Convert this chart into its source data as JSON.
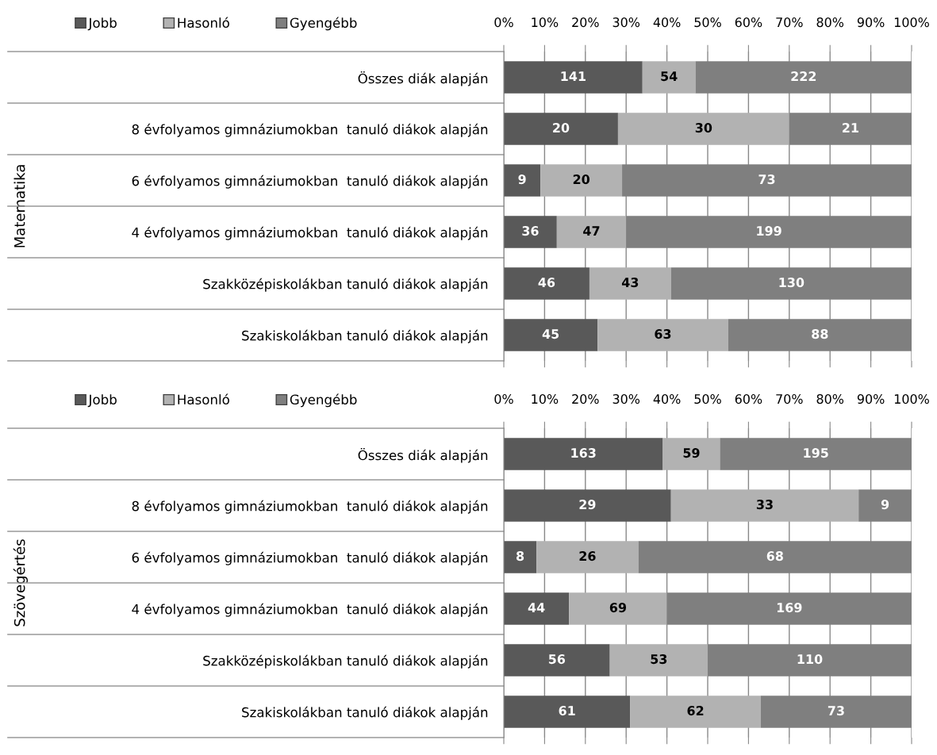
{
  "chart_data": [
    {
      "type": "bar",
      "orientation": "horizontal",
      "stacked": true,
      "ylabel": "Matematika",
      "categories": [
        "Összes diák alapján",
        "8 évfolyamos gimnáziumokban  tanuló diákok alapján",
        "6 évfolyamos gimnáziumokban  tanuló diákok alapján",
        "4 évfolyamos gimnáziumokban  tanuló diákok alapján",
        "Szakközépiskolákban tanuló diákok alapján",
        "Szakiskolákban tanuló diákok alapján"
      ],
      "series": [
        {
          "name": "Jobb",
          "color": "#595959",
          "values": [
            34,
            28,
            9,
            13,
            21,
            23
          ]
        },
        {
          "name": "Hasonló",
          "color": "#b2b2b2",
          "values": [
            13,
            42,
            20,
            17,
            20,
            32
          ]
        },
        {
          "name": "Gyengébb",
          "color": "#7f7f7f",
          "values": [
            53,
            30,
            71,
            70,
            59,
            45
          ]
        }
      ],
      "annotations": [
        "141",
        "54",
        "222",
        "20",
        "30",
        "21",
        "9",
        "20",
        "73",
        "36",
        "47",
        "199",
        "46",
        "43",
        "130",
        "45",
        "63",
        "88"
      ],
      "xlim": [
        0,
        100
      ],
      "xticks": [
        {
          "value": 0,
          "label": "0%"
        },
        {
          "value": 10,
          "label": "10%"
        },
        {
          "value": 20,
          "label": "20%"
        },
        {
          "value": 30,
          "label": "30%"
        },
        {
          "value": 40,
          "label": "40%"
        },
        {
          "value": 50,
          "label": "50%"
        },
        {
          "value": 60,
          "label": "60%"
        },
        {
          "value": 70,
          "label": "70%"
        },
        {
          "value": 80,
          "label": "80%"
        },
        {
          "value": 90,
          "label": "90%"
        },
        {
          "value": 100,
          "label": "100%"
        }
      ],
      "grid": "x",
      "legend": "top left"
    },
    {
      "type": "bar",
      "orientation": "horizontal",
      "stacked": true,
      "ylabel": "Szövegértés",
      "categories": [
        "Összes diák alapján",
        "8 évfolyamos gimnáziumokban  tanuló diákok alapján",
        "6 évfolyamos gimnáziumokban  tanuló diákok alapján",
        "4 évfolyamos gimnáziumokban  tanuló diákok alapján",
        "Szakközépiskolákban tanuló diákok alapján",
        "Szakiskolákban tanuló diákok alapján"
      ],
      "series": [
        {
          "name": "Jobb",
          "color": "#595959",
          "values": [
            39,
            41,
            8,
            16,
            26,
            31
          ]
        },
        {
          "name": "Hasonló",
          "color": "#b2b2b2",
          "values": [
            14,
            46,
            25,
            24,
            24,
            32
          ]
        },
        {
          "name": "Gyengébb",
          "color": "#7f7f7f",
          "values": [
            47,
            13,
            67,
            60,
            50,
            37
          ]
        }
      ],
      "annotations": [
        "163",
        "59",
        "195",
        "29",
        "33",
        "9",
        "8",
        "26",
        "68",
        "44",
        "69",
        "169",
        "56",
        "53",
        "110",
        "61",
        "62",
        "73"
      ],
      "xlim": [
        0,
        100
      ],
      "xticks": [
        {
          "value": 0,
          "label": "0%"
        },
        {
          "value": 10,
          "label": "10%"
        },
        {
          "value": 20,
          "label": "20%"
        },
        {
          "value": 30,
          "label": "30%"
        },
        {
          "value": 40,
          "label": "40%"
        },
        {
          "value": 50,
          "label": "50%"
        },
        {
          "value": 60,
          "label": "60%"
        },
        {
          "value": 70,
          "label": "70%"
        },
        {
          "value": 80,
          "label": "80%"
        },
        {
          "value": 90,
          "label": "90%"
        },
        {
          "value": 100,
          "label": "100%"
        }
      ],
      "grid": "x",
      "legend": "top left"
    }
  ]
}
